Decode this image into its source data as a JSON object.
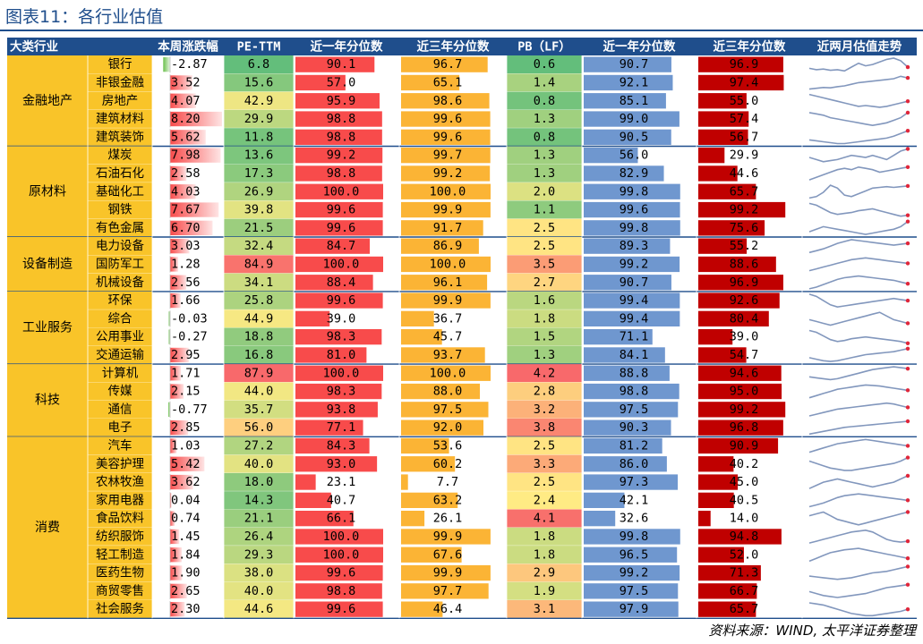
{
  "title": "图表11：各行业估值",
  "source": "资料来源：WIND, 太平洋证券整理",
  "colors": {
    "header_bg": "#1f4e8c",
    "group_bg": "#f9c429",
    "row_border": "#1f4e8c",
    "bar_1y_pct": "#f84b4b",
    "bar_3y_pct": "#fbb435",
    "bar_pb_1y": "#6f97cf",
    "bar_pb_3y": "#c00000",
    "bar_weekly_pos": "#f84b4b",
    "bar_weekly_neg": "#6abf4b",
    "spark": "#8297bd",
    "spark_end": "#e0263a"
  },
  "chart_data": {
    "type": "table",
    "columns": [
      "大类行业",
      "",
      "本周涨跌幅",
      "PE-TTM",
      "近一年分位数",
      "近三年分位数",
      "PB（LF）",
      "近一年分位数",
      "近三年分位数",
      "近两月估值走势"
    ],
    "groups": [
      {
        "name": "金融地产",
        "rows": [
          {
            "industry": "银行",
            "weekly": "-2.87",
            "pe": "6.8",
            "pe_1y": "90.1",
            "pe_3y": "96.7",
            "pb": "0.6",
            "pb_1y": "90.7",
            "pb_3y": "96.9",
            "trend": [
              1.2,
              1.1,
              1.15,
              1.05,
              1.1,
              1.0,
              1.3,
              1.6,
              1.4,
              1.5,
              1.7,
              1.9,
              2.0,
              1.8,
              1.3
            ]
          },
          {
            "industry": "非银金融",
            "weekly": "3.52",
            "pe": "15.6",
            "pe_1y": "57.0",
            "pe_3y": "65.1",
            "pb": "1.4",
            "pb_1y": "92.1",
            "pb_3y": "97.4",
            "trend": [
              1.0,
              1.05,
              1.1,
              1.08,
              1.15,
              1.2,
              1.3,
              1.4,
              1.45,
              1.5,
              1.55,
              1.6,
              1.65,
              1.8,
              1.7
            ]
          },
          {
            "industry": "房地产",
            "weekly": "4.07",
            "pe": "42.9",
            "pe_1y": "95.9",
            "pe_3y": "98.6",
            "pb": "0.8",
            "pb_1y": "85.1",
            "pb_3y": "55.0",
            "trend": [
              2.0,
              1.9,
              1.8,
              1.7,
              1.6,
              1.5,
              1.4,
              1.3,
              1.35,
              1.3,
              1.25,
              1.3,
              1.4,
              1.5,
              1.6
            ]
          },
          {
            "industry": "建筑材料",
            "weekly": "8.20",
            "pe": "29.9",
            "pe_1y": "98.8",
            "pe_3y": "99.6",
            "pb": "1.3",
            "pb_1y": "99.0",
            "pb_3y": "57.4",
            "trend": [
              1.8,
              1.75,
              1.7,
              1.6,
              1.55,
              1.5,
              1.45,
              1.4,
              1.35,
              1.3,
              1.35,
              1.4,
              1.5,
              1.6,
              1.8
            ]
          },
          {
            "industry": "建筑装饰",
            "weekly": "5.62",
            "pe": "11.8",
            "pe_1y": "98.8",
            "pe_3y": "99.6",
            "pb": "0.8",
            "pb_1y": "90.5",
            "pb_3y": "56.7",
            "trend": [
              1.5,
              1.45,
              1.4,
              1.35,
              1.3,
              1.3,
              1.35,
              1.4,
              1.45,
              1.5,
              1.55,
              1.6,
              1.7,
              1.85,
              2.0
            ]
          }
        ]
      },
      {
        "name": "原材料",
        "rows": [
          {
            "industry": "煤炭",
            "weekly": "7.98",
            "pe": "13.6",
            "pe_1y": "99.2",
            "pe_3y": "99.7",
            "pb": "1.3",
            "pb_1y": "56.0",
            "pb_3y": "29.9",
            "trend": [
              1.6,
              1.5,
              1.4,
              1.45,
              1.5,
              1.6,
              1.7,
              1.65,
              1.6,
              1.7,
              1.6,
              1.5,
              1.7,
              1.9,
              2.0
            ]
          },
          {
            "industry": "石油石化",
            "weekly": "2.58",
            "pe": "17.3",
            "pe_1y": "98.8",
            "pe_3y": "99.2",
            "pb": "1.3",
            "pb_1y": "82.9",
            "pb_3y": "44.6",
            "trend": [
              1.3,
              1.4,
              1.5,
              1.6,
              1.7,
              1.75,
              1.7,
              1.8,
              1.75,
              1.7,
              1.6,
              1.65,
              1.7,
              1.75,
              1.8
            ]
          },
          {
            "industry": "基础化工",
            "weekly": "4.03",
            "pe": "26.9",
            "pe_1y": "100.0",
            "pe_3y": "100.0",
            "pb": "2.0",
            "pb_1y": "99.8",
            "pb_3y": "65.7",
            "trend": [
              1.0,
              1.1,
              1.4,
              1.9,
              1.7,
              1.2,
              1.1,
              1.3,
              1.5,
              1.7,
              1.75,
              1.8,
              1.75,
              1.8,
              1.85
            ]
          },
          {
            "industry": "钢铁",
            "weekly": "7.67",
            "pe": "39.8",
            "pe_1y": "99.6",
            "pe_3y": "99.9",
            "pb": "1.1",
            "pb_1y": "99.6",
            "pb_3y": "99.2",
            "trend": [
              1.9,
              1.8,
              1.6,
              1.4,
              1.3,
              1.35,
              1.4,
              1.5,
              1.55,
              1.6,
              1.5,
              1.4,
              1.3,
              1.2,
              1.25
            ]
          },
          {
            "industry": "有色金属",
            "weekly": "6.70",
            "pe": "21.5",
            "pe_1y": "99.6",
            "pe_3y": "91.7",
            "pb": "2.5",
            "pb_1y": "99.8",
            "pb_3y": "75.6",
            "trend": [
              1.5,
              1.6,
              1.7,
              1.65,
              1.6,
              1.55,
              1.5,
              1.45,
              1.4,
              1.45,
              1.5,
              1.55,
              1.6,
              1.7,
              1.9
            ]
          }
        ]
      },
      {
        "name": "设备制造",
        "rows": [
          {
            "industry": "电力设备",
            "weekly": "3.03",
            "pe": "32.4",
            "pe_1y": "84.7",
            "pe_3y": "86.9",
            "pb": "2.5",
            "pb_1y": "89.3",
            "pb_3y": "55.2",
            "trend": [
              1.0,
              1.1,
              1.2,
              1.35,
              1.5,
              1.6,
              1.7,
              1.65,
              1.6,
              1.55,
              1.5,
              1.45,
              1.4,
              1.45,
              1.5
            ]
          },
          {
            "industry": "国防军工",
            "weekly": "1.28",
            "pe": "84.9",
            "pe_1y": "100.0",
            "pe_3y": "100.0",
            "pb": "3.5",
            "pb_1y": "99.2",
            "pb_3y": "88.6",
            "trend": [
              1.1,
              1.2,
              1.3,
              1.4,
              1.5,
              1.6,
              1.7,
              1.75,
              1.8,
              1.75,
              1.7,
              1.65,
              1.6,
              1.55,
              1.5
            ]
          },
          {
            "industry": "机械设备",
            "weekly": "2.56",
            "pe": "34.1",
            "pe_1y": "88.4",
            "pe_3y": "96.1",
            "pb": "2.7",
            "pb_1y": "90.7",
            "pb_3y": "96.9",
            "trend": [
              1.0,
              1.1,
              1.25,
              1.4,
              1.55,
              1.65,
              1.7,
              1.75,
              1.7,
              1.65,
              1.6,
              1.55,
              1.5,
              1.4,
              1.3
            ]
          }
        ]
      },
      {
        "name": "工业服务",
        "rows": [
          {
            "industry": "环保",
            "weekly": "1.66",
            "pe": "25.8",
            "pe_1y": "99.6",
            "pe_3y": "99.9",
            "pb": "1.6",
            "pb_1y": "99.4",
            "pb_3y": "92.6",
            "trend": [
              1.8,
              1.7,
              1.5,
              1.3,
              1.2,
              1.25,
              1.3,
              1.35,
              1.4,
              1.45,
              1.5,
              1.55,
              1.6,
              1.55,
              1.5
            ]
          },
          {
            "industry": "综合",
            "weekly": "-0.03",
            "pe": "44.9",
            "pe_1y": "39.0",
            "pe_3y": "36.7",
            "pb": "1.8",
            "pb_1y": "99.4",
            "pb_3y": "80.4",
            "trend": [
              1.4,
              1.35,
              1.3,
              1.25,
              1.3,
              1.35,
              1.4,
              1.45,
              1.5,
              1.55,
              1.6,
              1.5,
              1.4,
              1.35,
              1.3
            ]
          },
          {
            "industry": "公用事业",
            "weekly": "-0.27",
            "pe": "18.8",
            "pe_1y": "98.3",
            "pe_3y": "45.7",
            "pb": "1.5",
            "pb_1y": "71.1",
            "pb_3y": "39.0",
            "trend": [
              1.9,
              1.8,
              1.6,
              1.4,
              1.3,
              1.35,
              1.45,
              1.5,
              1.55,
              1.5,
              1.45,
              1.4,
              1.35,
              1.3,
              1.2
            ]
          },
          {
            "industry": "交通运输",
            "weekly": "2.95",
            "pe": "16.8",
            "pe_1y": "81.0",
            "pe_3y": "93.7",
            "pb": "1.3",
            "pb_1y": "84.1",
            "pb_3y": "54.7",
            "trend": [
              1.3,
              1.2,
              1.1,
              1.05,
              1.1,
              1.2,
              1.3,
              1.4,
              1.5,
              1.55,
              1.6,
              1.65,
              1.7,
              1.8,
              1.9
            ]
          }
        ]
      },
      {
        "name": "科技",
        "rows": [
          {
            "industry": "计算机",
            "weekly": "1.71",
            "pe": "87.9",
            "pe_1y": "100.0",
            "pe_3y": "100.0",
            "pb": "4.2",
            "pb_1y": "88.8",
            "pb_3y": "94.6",
            "trend": [
              1.3,
              1.25,
              1.2,
              1.15,
              1.2,
              1.3,
              1.4,
              1.5,
              1.6,
              1.7,
              1.75,
              1.8,
              1.85,
              1.8,
              1.75
            ]
          },
          {
            "industry": "传媒",
            "weekly": "2.15",
            "pe": "44.0",
            "pe_1y": "98.3",
            "pe_3y": "88.0",
            "pb": "2.8",
            "pb_1y": "98.8",
            "pb_3y": "95.0",
            "trend": [
              1.2,
              1.3,
              1.4,
              1.5,
              1.6,
              1.65,
              1.7,
              1.75,
              1.8,
              1.78,
              1.75,
              1.7,
              1.65,
              1.6,
              1.55
            ]
          },
          {
            "industry": "通信",
            "weekly": "-0.77",
            "pe": "35.7",
            "pe_1y": "93.8",
            "pe_3y": "97.5",
            "pb": "3.2",
            "pb_1y": "97.5",
            "pb_3y": "99.2",
            "trend": [
              1.1,
              1.2,
              1.3,
              1.4,
              1.5,
              1.55,
              1.6,
              1.65,
              1.7,
              1.75,
              1.8,
              1.85,
              1.8,
              1.7,
              1.6
            ]
          },
          {
            "industry": "电子",
            "weekly": "2.85",
            "pe": "56.0",
            "pe_1y": "77.1",
            "pe_3y": "92.0",
            "pb": "3.8",
            "pb_1y": "90.3",
            "pb_3y": "96.8",
            "trend": [
              1.0,
              1.1,
              1.2,
              1.3,
              1.4,
              1.5,
              1.55,
              1.6,
              1.65,
              1.7,
              1.75,
              1.8,
              1.85,
              1.9,
              1.95
            ]
          }
        ]
      },
      {
        "name": "消费",
        "rows": [
          {
            "industry": "汽车",
            "weekly": "1.03",
            "pe": "27.2",
            "pe_1y": "84.3",
            "pe_3y": "53.6",
            "pb": "2.5",
            "pb_1y": "81.2",
            "pb_3y": "90.9",
            "trend": [
              1.2,
              1.3,
              1.4,
              1.5,
              1.6,
              1.65,
              1.7,
              1.75,
              1.8,
              1.75,
              1.7,
              1.65,
              1.6,
              1.55,
              1.5
            ]
          },
          {
            "industry": "美容护理",
            "weekly": "5.42",
            "pe": "40.0",
            "pe_1y": "93.0",
            "pe_3y": "60.2",
            "pb": "3.3",
            "pb_1y": "86.0",
            "pb_3y": "40.2",
            "trend": [
              1.7,
              1.6,
              1.5,
              1.4,
              1.35,
              1.3,
              1.3,
              1.35,
              1.4,
              1.45,
              1.5,
              1.55,
              1.6,
              1.7,
              1.85
            ]
          },
          {
            "industry": "农林牧渔",
            "weekly": "3.62",
            "pe": "18.0",
            "pe_1y": "23.1",
            "pe_3y": "7.7",
            "pb": "2.5",
            "pb_1y": "97.3",
            "pb_3y": "45.0",
            "trend": [
              1.3,
              1.4,
              1.5,
              1.55,
              1.6,
              1.55,
              1.5,
              1.45,
              1.4,
              1.35,
              1.4,
              1.45,
              1.5,
              1.6,
              1.7
            ]
          },
          {
            "industry": "家用电器",
            "weekly": "0.04",
            "pe": "14.3",
            "pe_1y": "40.7",
            "pe_3y": "63.2",
            "pb": "2.4",
            "pb_1y": "42.1",
            "pb_3y": "40.5",
            "trend": [
              1.0,
              1.1,
              1.2,
              1.35,
              1.5,
              1.6,
              1.65,
              1.7,
              1.65,
              1.6,
              1.55,
              1.5,
              1.45,
              1.4,
              1.35
            ]
          },
          {
            "industry": "食品饮料",
            "weekly": "0.74",
            "pe": "21.1",
            "pe_1y": "66.1",
            "pe_3y": "26.1",
            "pb": "4.1",
            "pb_1y": "32.6",
            "pb_3y": "14.0",
            "trend": [
              1.5,
              1.55,
              1.6,
              1.5,
              1.4,
              1.35,
              1.3,
              1.25,
              1.3,
              1.35,
              1.4,
              1.45,
              1.5,
              1.55,
              1.6
            ]
          },
          {
            "industry": "纺织服饰",
            "weekly": "1.45",
            "pe": "26.4",
            "pe_1y": "100.0",
            "pe_3y": "99.9",
            "pb": "1.8",
            "pb_1y": "99.8",
            "pb_3y": "94.8",
            "trend": [
              1.2,
              1.3,
              1.4,
              1.5,
              1.6,
              1.7,
              1.8,
              1.85,
              1.9,
              1.8,
              1.6,
              1.4,
              1.3,
              1.25,
              1.3
            ]
          },
          {
            "industry": "轻工制造",
            "weekly": "1.84",
            "pe": "29.3",
            "pe_1y": "100.0",
            "pe_3y": "67.6",
            "pb": "1.8",
            "pb_1y": "96.5",
            "pb_3y": "52.0",
            "trend": [
              1.0,
              1.2,
              1.4,
              1.6,
              1.7,
              1.8,
              1.85,
              1.9,
              1.8,
              1.7,
              1.6,
              1.5,
              1.4,
              1.3,
              1.2
            ]
          },
          {
            "industry": "医药生物",
            "weekly": "1.90",
            "pe": "38.0",
            "pe_1y": "99.6",
            "pe_3y": "99.9",
            "pb": "2.9",
            "pb_1y": "99.2",
            "pb_3y": "71.3",
            "trend": [
              1.3,
              1.25,
              1.2,
              1.15,
              1.1,
              1.15,
              1.2,
              1.3,
              1.4,
              1.5,
              1.55,
              1.6,
              1.7,
              1.8,
              1.9
            ]
          },
          {
            "industry": "商贸零售",
            "weekly": "2.65",
            "pe": "40.0",
            "pe_1y": "98.8",
            "pe_3y": "97.7",
            "pb": "1.9",
            "pb_1y": "97.5",
            "pb_3y": "66.7",
            "trend": [
              1.5,
              1.4,
              1.3,
              1.25,
              1.2,
              1.25,
              1.3,
              1.35,
              1.4,
              1.5,
              1.6,
              1.7,
              1.75,
              1.8,
              1.85
            ]
          },
          {
            "industry": "社会服务",
            "weekly": "2.30",
            "pe": "44.6",
            "pe_1y": "99.6",
            "pe_3y": "46.4",
            "pb": "3.1",
            "pb_1y": "97.9",
            "pb_3y": "65.7",
            "trend": [
              1.8,
              1.75,
              1.7,
              1.6,
              1.5,
              1.4,
              1.3,
              1.25,
              1.2,
              1.2,
              1.25,
              1.3,
              1.35,
              1.4,
              1.5
            ]
          }
        ]
      }
    ]
  }
}
